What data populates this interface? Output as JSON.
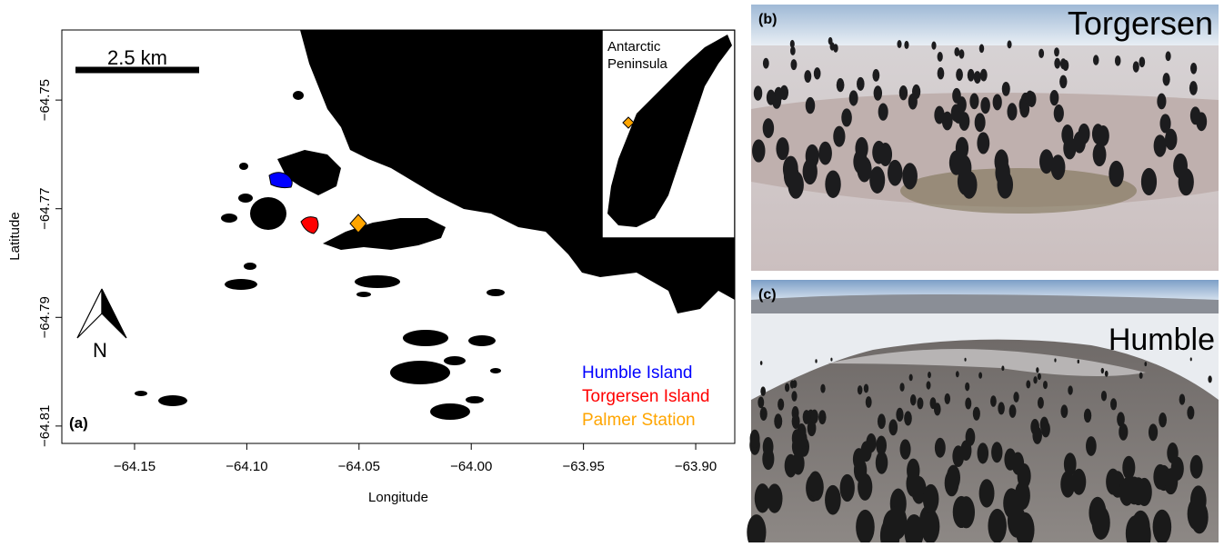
{
  "map": {
    "panel_label": "(a)",
    "scale_bar": "2.5 km",
    "xlabel": "Longitude",
    "ylabel": "Latitude",
    "north": "N",
    "inset_label": [
      "Antarctic",
      "Peninsula"
    ],
    "xlim": [
      -64.1824,
      -63.8826
    ],
    "ylim": [
      -64.8132,
      -64.7371
    ],
    "xticks": [
      {
        "value": -64.15,
        "label": "−64.15"
      },
      {
        "value": -64.1,
        "label": "−64.10"
      },
      {
        "value": -64.05,
        "label": "−64.05"
      },
      {
        "value": -64.0,
        "label": "−64.00"
      },
      {
        "value": -63.95,
        "label": "−63.95"
      },
      {
        "value": -63.9,
        "label": "−63.90"
      }
    ],
    "yticks": [
      {
        "value": -64.75,
        "label": "−64.75"
      },
      {
        "value": -64.77,
        "label": "−64.77"
      },
      {
        "value": -64.79,
        "label": "−64.79"
      },
      {
        "value": -64.81,
        "label": "−64.81"
      }
    ],
    "legend": [
      {
        "name": "Humble Island",
        "color": "#0000ff"
      },
      {
        "name": "Torgersen Island",
        "color": "#ff0000"
      },
      {
        "name": "Palmer Station",
        "color": "#ffa500"
      }
    ]
  },
  "photos": [
    {
      "label": "(b)",
      "name": "Torgersen"
    },
    {
      "label": "(c)",
      "name": "Humble"
    }
  ]
}
